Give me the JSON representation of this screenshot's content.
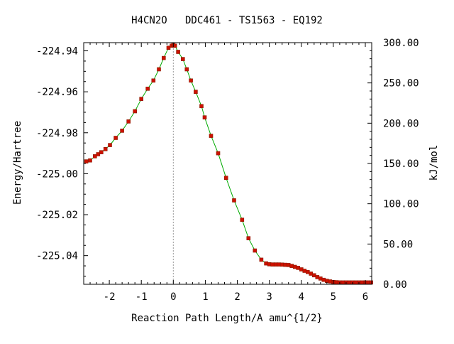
{
  "chart_data": {
    "type": "line",
    "title": "H4CN2O   DDC461 - TS1563 - EQ192",
    "xlabel": "Reaction Path Length/A amu^{1/2}",
    "ylabel": "Energy/Hartree",
    "y2label": "kJ/mol",
    "xlim": [
      -2.8,
      6.2
    ],
    "ylim": [
      -225.054,
      -224.936
    ],
    "y2lim": [
      0.0,
      300.0
    ],
    "x_ticks": [
      -2,
      -1,
      0,
      1,
      2,
      3,
      4,
      5,
      6
    ],
    "y_ticks": [
      -224.94,
      -224.96,
      -224.98,
      -225.0,
      -225.02,
      -225.04
    ],
    "y_tick_labels": [
      "-224.94",
      "-224.96",
      "-224.98",
      "-225.00",
      "-225.02",
      "-225.04"
    ],
    "y2_ticks": [
      300.0,
      250.0,
      200.0,
      150.0,
      100.0,
      50.0,
      0.0
    ],
    "y2_tick_labels": [
      "300.00",
      "250.00",
      "200.00",
      "150.00",
      "100.00",
      "50.00",
      "0.00"
    ],
    "ts_marker_x": 0.0,
    "grid": false,
    "line_color": "#00aa00",
    "marker_color": "#cc1100",
    "ts_line_color": "#999999",
    "series": [
      {
        "x": [
          -2.72,
          -2.6,
          -2.45,
          -2.35,
          -2.25,
          -2.12,
          -1.98,
          -1.8,
          -1.6,
          -1.4,
          -1.2,
          -1.0,
          -0.8,
          -0.62,
          -0.45,
          -0.3,
          -0.15,
          -0.05,
          0.0,
          0.05,
          0.15,
          0.3,
          0.42,
          0.55,
          0.7,
          0.88,
          0.98,
          1.18,
          1.4,
          1.65,
          1.9,
          2.15,
          2.35,
          2.55,
          2.75,
          2.9,
          3.0,
          3.1,
          3.2,
          3.3,
          3.4,
          3.5,
          3.6,
          3.7,
          3.8,
          3.9,
          4.0,
          4.1,
          4.2,
          4.3,
          4.4,
          4.5,
          4.6,
          4.7,
          4.8,
          4.9,
          5.0,
          5.1,
          5.2,
          5.3,
          5.4,
          5.5,
          5.6,
          5.7,
          5.8,
          5.9,
          6.0,
          6.1,
          6.18
        ],
        "y": [
          -224.994,
          -224.9935,
          -224.9915,
          -224.9905,
          -224.9895,
          -224.988,
          -224.986,
          -224.9825,
          -224.979,
          -224.9745,
          -224.9695,
          -224.9635,
          -224.9585,
          -224.9545,
          -224.949,
          -224.9435,
          -224.9385,
          -224.9375,
          -224.9372,
          -224.9375,
          -224.9405,
          -224.944,
          -224.949,
          -224.9545,
          -224.96,
          -224.967,
          -224.9725,
          -224.9815,
          -224.99,
          -225.002,
          -225.013,
          -225.0225,
          -225.0315,
          -225.0375,
          -225.042,
          -225.0438,
          -225.0442,
          -225.0443,
          -225.0443,
          -225.0443,
          -225.0444,
          -225.0445,
          -225.0446,
          -225.045,
          -225.0455,
          -225.046,
          -225.0467,
          -225.0474,
          -225.048,
          -225.0488,
          -225.0496,
          -225.0505,
          -225.0512,
          -225.0518,
          -225.0523,
          -225.0526,
          -225.0529,
          -225.053,
          -225.0531,
          -225.0531,
          -225.0531,
          -225.0531,
          -225.0531,
          -225.0531,
          -225.0531,
          -225.0531,
          -225.0531,
          -225.0531,
          -225.0531
        ]
      }
    ]
  }
}
